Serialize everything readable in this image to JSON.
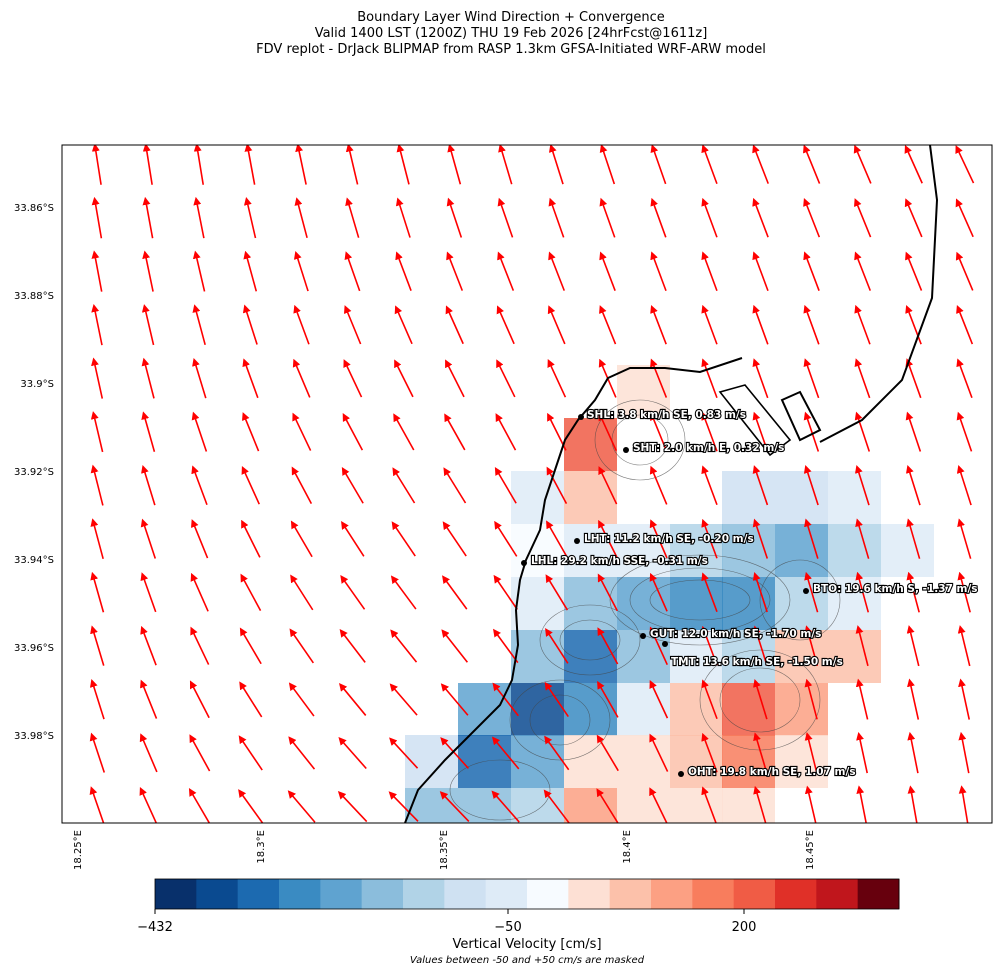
{
  "header": {
    "title_lines": [
      "Boundary Layer Wind Direction + Convergence",
      "Valid 1400 LST (1200Z) THU 19 Feb 2026 [24hrFcst@1611z]",
      "FDV replot - DrJack BLIPMAP from RASP 1.3km GFSA-Initiated WRF-ARW model"
    ]
  },
  "map": {
    "lat_labels": [
      "33.86°S",
      "33.88°S",
      "33.9°S",
      "33.92°S",
      "33.94°S",
      "33.96°S",
      "33.98°S"
    ],
    "lon_labels": [
      "18.25°E",
      "18.3°E",
      "18.35°E",
      "18.4°E",
      "18.45°E"
    ],
    "stations": [
      {
        "label": "SHL: 3.8 km/h SE, 0.83 m/s"
      },
      {
        "label": "SHT: 2.0 km/h E, 0.32 m/s"
      },
      {
        "label": "LHT: 11.2 km/h SE, -0.20 m/s"
      },
      {
        "label": "LHL: 29.2 km/h SSE, -0.31 m/s"
      },
      {
        "label": "BTO: 19.6 km/h S, -1.37 m/s"
      },
      {
        "label": "GUT: 12.0 km/h SE, -1.70 m/s"
      },
      {
        "label": "TMT: 13.6 km/h SE, -1.50 m/s"
      },
      {
        "label": "OHT: 19.8 km/h SE, 1.07 m/s"
      }
    ]
  },
  "colorbar": {
    "ticks": [
      "−432",
      "−50",
      "200"
    ],
    "label": "Vertical Velocity [cm/s]",
    "note": "Values between -50 and +50 cm/s are masked"
  }
}
